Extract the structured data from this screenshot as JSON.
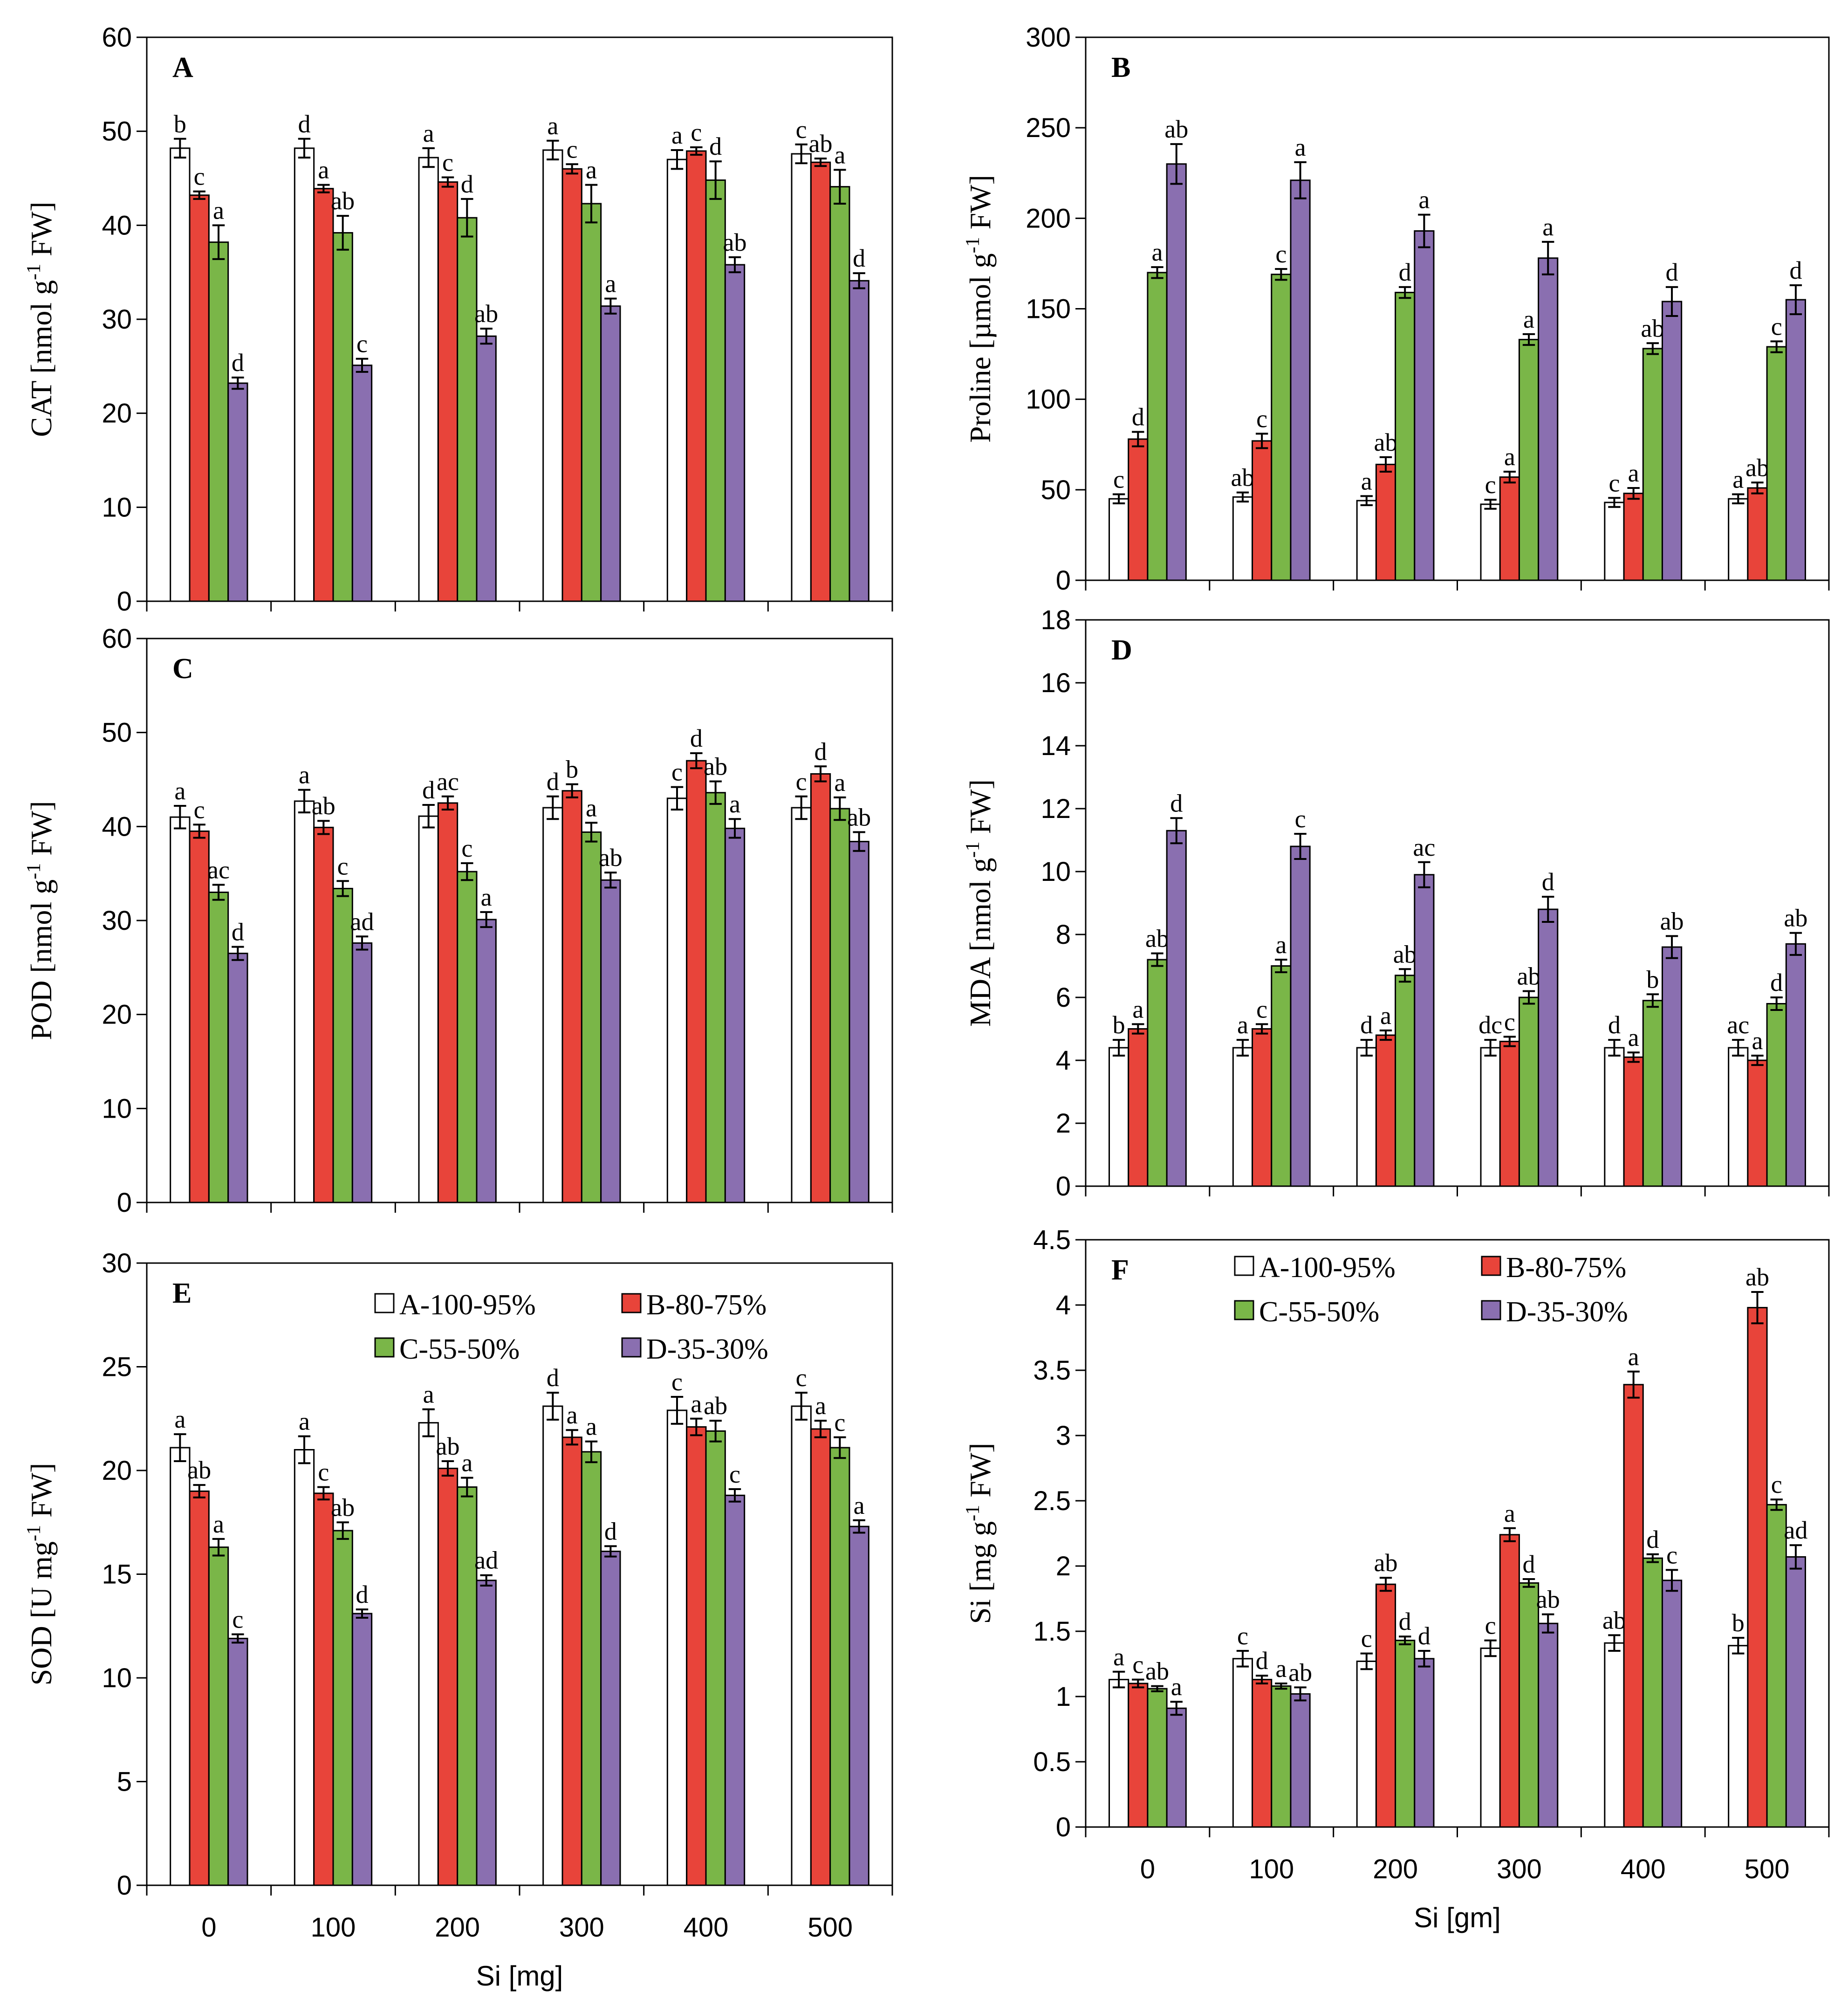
{
  "colors": {
    "A-100-95%": "#ffffff",
    "B-80-75%": "#e8443a",
    "C-55-50%": "#7ab648",
    "D-35-30%": "#8a6fb0"
  },
  "chart_data": [
    {
      "type": "bar",
      "panel": "A",
      "ylabel_parts": [
        "CAT [nmol g",
        "-1",
        " FW]"
      ],
      "xlabel": "",
      "ylim": [
        0,
        60
      ],
      "yticks": [
        0,
        10,
        20,
        30,
        40,
        50,
        60
      ],
      "categories": [
        "0",
        "100",
        "200",
        "300",
        "400",
        "500"
      ],
      "show_xticklabels": false,
      "series": [
        {
          "name": "A-100-95%",
          "values": [
            48.2,
            48.2,
            47.2,
            48.0,
            47.0,
            47.6
          ],
          "errors": [
            1.0,
            1.0,
            1.0,
            1.0,
            1.0,
            1.0
          ],
          "letters": [
            "b",
            "d",
            "a",
            "a",
            "a",
            "c"
          ]
        },
        {
          "name": "B-80-75%",
          "values": [
            43.2,
            43.9,
            44.6,
            46.0,
            47.9,
            46.7
          ],
          "errors": [
            0.4,
            0.4,
            0.5,
            0.5,
            0.4,
            0.4
          ],
          "letters": [
            "c",
            "a",
            "c",
            "c",
            "c",
            "ab"
          ]
        },
        {
          "name": "C-55-50%",
          "values": [
            38.2,
            39.2,
            40.8,
            42.3,
            44.8,
            44.1
          ],
          "errors": [
            1.8,
            1.8,
            2.0,
            2.0,
            2.0,
            1.8
          ],
          "letters": [
            "a",
            "ab",
            "d",
            "a",
            "d",
            "a"
          ]
        },
        {
          "name": "D-35-30%",
          "values": [
            23.2,
            25.1,
            28.2,
            31.4,
            35.8,
            34.1
          ],
          "errors": [
            0.6,
            0.7,
            0.8,
            0.8,
            0.8,
            0.8
          ],
          "letters": [
            "d",
            "c",
            "ab",
            "a",
            "ab",
            "d"
          ]
        }
      ]
    },
    {
      "type": "bar",
      "panel": "B",
      "ylabel_parts": [
        "Proline [µmol g",
        "-1",
        " FW]"
      ],
      "xlabel": "",
      "ylim": [
        0,
        300
      ],
      "yticks": [
        0,
        50,
        100,
        150,
        200,
        250,
        300
      ],
      "categories": [
        "0",
        "100",
        "200",
        "300",
        "400",
        "500"
      ],
      "show_xticklabels": false,
      "series": [
        {
          "name": "A-100-95%",
          "values": [
            45,
            46,
            44,
            42,
            43,
            45
          ],
          "errors": [
            2.5,
            2.5,
            2.5,
            2.5,
            2.5,
            2.5
          ],
          "letters": [
            "c",
            "ab",
            "a",
            "c",
            "c",
            "a"
          ]
        },
        {
          "name": "B-80-75%",
          "values": [
            78,
            77,
            64,
            57,
            48,
            51
          ],
          "errors": [
            4,
            4,
            4,
            3,
            3,
            3
          ],
          "letters": [
            "d",
            "c",
            "ab",
            "a",
            "a",
            "ab"
          ]
        },
        {
          "name": "C-55-50%",
          "values": [
            170,
            169,
            159,
            133,
            128,
            129
          ],
          "errors": [
            3,
            3,
            3,
            3,
            3,
            3
          ],
          "letters": [
            "a",
            "c",
            "d",
            "a",
            "ab",
            "c"
          ]
        },
        {
          "name": "D-35-30%",
          "values": [
            230,
            221,
            193,
            178,
            154,
            155
          ],
          "errors": [
            11,
            10,
            9,
            9,
            8,
            8
          ],
          "letters": [
            "ab",
            "a",
            "a",
            "a",
            "d",
            "d"
          ]
        }
      ]
    },
    {
      "type": "bar",
      "panel": "C",
      "ylabel_parts": [
        "POD [nmol g",
        "-1",
        " FW]"
      ],
      "xlabel": "",
      "ylim": [
        0,
        60
      ],
      "yticks": [
        0,
        10,
        20,
        30,
        40,
        50,
        60
      ],
      "categories": [
        "0",
        "100",
        "200",
        "300",
        "400",
        "500"
      ],
      "show_xticklabels": false,
      "series": [
        {
          "name": "A-100-95%",
          "values": [
            41.0,
            42.7,
            41.1,
            42.0,
            43.0,
            42.0
          ],
          "errors": [
            1.2,
            1.2,
            1.2,
            1.2,
            1.2,
            1.2
          ],
          "letters": [
            "a",
            "a",
            "d",
            "d",
            "c",
            "c"
          ]
        },
        {
          "name": "B-80-75%",
          "values": [
            39.5,
            39.9,
            42.5,
            43.8,
            47.0,
            45.6
          ],
          "errors": [
            0.7,
            0.7,
            0.7,
            0.7,
            0.8,
            0.8
          ],
          "letters": [
            "c",
            "ab",
            "ac",
            "b",
            "d",
            "d"
          ]
        },
        {
          "name": "C-55-50%",
          "values": [
            33.0,
            33.4,
            35.2,
            39.4,
            43.6,
            41.9
          ],
          "errors": [
            0.8,
            0.8,
            0.9,
            1.0,
            1.2,
            1.2
          ],
          "letters": [
            "ac",
            "c",
            "c",
            "a",
            "ab",
            "a"
          ]
        },
        {
          "name": "D-35-30%",
          "values": [
            26.5,
            27.6,
            30.1,
            34.3,
            39.8,
            38.4
          ],
          "errors": [
            0.7,
            0.7,
            0.8,
            0.8,
            1.0,
            1.0
          ],
          "letters": [
            "d",
            "ad",
            "a",
            "ab",
            "a",
            "ab"
          ]
        }
      ]
    },
    {
      "type": "bar",
      "panel": "D",
      "ylabel_parts": [
        "MDA [nmol g",
        "-1",
        " FW]"
      ],
      "xlabel": "",
      "ylim": [
        0,
        18
      ],
      "yticks": [
        0,
        2,
        4,
        6,
        8,
        10,
        12,
        14,
        16,
        18
      ],
      "categories": [
        "0",
        "100",
        "200",
        "300",
        "400",
        "500"
      ],
      "show_xticklabels": false,
      "series": [
        {
          "name": "A-100-95%",
          "values": [
            4.4,
            4.4,
            4.4,
            4.4,
            4.4,
            4.4
          ],
          "errors": [
            0.25,
            0.25,
            0.25,
            0.25,
            0.25,
            0.25
          ],
          "letters": [
            "b",
            "a",
            "d",
            "dc",
            "d",
            "ac"
          ]
        },
        {
          "name": "B-80-75%",
          "values": [
            5.0,
            5.0,
            4.8,
            4.6,
            4.1,
            4.0
          ],
          "errors": [
            0.15,
            0.15,
            0.15,
            0.15,
            0.15,
            0.15
          ],
          "letters": [
            "a",
            "c",
            "a",
            "c",
            "a",
            "a"
          ]
        },
        {
          "name": "C-55-50%",
          "values": [
            7.2,
            7.0,
            6.7,
            6.0,
            5.9,
            5.8
          ],
          "errors": [
            0.2,
            0.2,
            0.2,
            0.2,
            0.2,
            0.2
          ],
          "letters": [
            "ab",
            "a",
            "ab",
            "ab",
            "b",
            "d"
          ]
        },
        {
          "name": "D-35-30%",
          "values": [
            11.3,
            10.8,
            9.9,
            8.8,
            7.6,
            7.7
          ],
          "errors": [
            0.4,
            0.4,
            0.4,
            0.4,
            0.35,
            0.35
          ],
          "letters": [
            "d",
            "c",
            "ac",
            "d",
            "ab",
            "ab"
          ]
        }
      ]
    },
    {
      "type": "bar",
      "panel": "E",
      "ylabel_parts": [
        "SOD [U mg",
        "-1",
        " FW]"
      ],
      "xlabel": "Si [mg]",
      "ylim": [
        0,
        30
      ],
      "yticks": [
        0,
        5,
        10,
        15,
        20,
        25,
        30
      ],
      "categories": [
        "0",
        "100",
        "200",
        "300",
        "400",
        "500"
      ],
      "show_xticklabels": true,
      "legend": {
        "labels": [
          "A-100-95%",
          "B-80-75%",
          "C-55-50%",
          "D-35-30%"
        ],
        "position": "top-right"
      },
      "series": [
        {
          "name": "A-100-95%",
          "values": [
            21.1,
            21.0,
            22.3,
            23.1,
            22.9,
            23.1
          ],
          "errors": [
            0.65,
            0.65,
            0.65,
            0.65,
            0.65,
            0.65
          ],
          "letters": [
            "a",
            "a",
            "a",
            "d",
            "c",
            "c"
          ]
        },
        {
          "name": "B-80-75%",
          "values": [
            19.0,
            18.9,
            20.1,
            21.6,
            22.1,
            22.0
          ],
          "errors": [
            0.3,
            0.3,
            0.35,
            0.35,
            0.4,
            0.4
          ],
          "letters": [
            "ab",
            "c",
            "ab",
            "a",
            "a",
            "a"
          ]
        },
        {
          "name": "C-55-50%",
          "values": [
            16.3,
            17.1,
            19.2,
            20.9,
            21.9,
            21.1
          ],
          "errors": [
            0.4,
            0.4,
            0.45,
            0.5,
            0.5,
            0.5
          ],
          "letters": [
            "a",
            "ab",
            "a",
            "a",
            "ab",
            "c"
          ]
        },
        {
          "name": "D-35-30%",
          "values": [
            11.9,
            13.1,
            14.7,
            16.1,
            18.8,
            17.3
          ],
          "errors": [
            0.2,
            0.2,
            0.25,
            0.25,
            0.3,
            0.3
          ],
          "letters": [
            "c",
            "d",
            "ad",
            "d",
            "c",
            "a"
          ]
        }
      ]
    },
    {
      "type": "bar",
      "panel": "F",
      "ylabel_parts": [
        "Si  [mg g",
        "-1",
        " FW]"
      ],
      "xlabel": "Si [gm]",
      "ylim": [
        0,
        4.5
      ],
      "yticks": [
        0,
        0.5,
        1,
        1.5,
        2,
        2.5,
        3,
        3.5,
        4,
        4.5
      ],
      "categories": [
        "0",
        "100",
        "200",
        "300",
        "400",
        "500"
      ],
      "show_xticklabels": true,
      "legend": {
        "labels": [
          "A-100-95%",
          "B-80-75%",
          "C-55-50%",
          "D-35-30%"
        ],
        "position": "top"
      },
      "series": [
        {
          "name": "A-100-95%",
          "values": [
            1.13,
            1.29,
            1.27,
            1.37,
            1.41,
            1.39
          ],
          "errors": [
            0.06,
            0.06,
            0.06,
            0.06,
            0.06,
            0.06
          ],
          "letters": [
            "a",
            "c",
            "c",
            "c",
            "ab",
            "b"
          ]
        },
        {
          "name": "B-80-75%",
          "values": [
            1.1,
            1.13,
            1.86,
            2.24,
            3.39,
            3.98
          ],
          "errors": [
            0.03,
            0.03,
            0.05,
            0.05,
            0.1,
            0.12
          ],
          "letters": [
            "c",
            "d",
            "ab",
            "a",
            "a",
            "ab"
          ]
        },
        {
          "name": "C-55-50%",
          "values": [
            1.06,
            1.08,
            1.43,
            1.87,
            2.06,
            2.47
          ],
          "errors": [
            0.02,
            0.02,
            0.03,
            0.03,
            0.03,
            0.04
          ],
          "letters": [
            "ab",
            "a",
            "d",
            "d",
            "d",
            "c"
          ]
        },
        {
          "name": "D-35-30%",
          "values": [
            0.91,
            1.02,
            1.29,
            1.56,
            1.89,
            2.07
          ],
          "errors": [
            0.05,
            0.05,
            0.06,
            0.07,
            0.08,
            0.09
          ],
          "letters": [
            "a",
            "ab",
            "d",
            "ab",
            "c",
            "ad"
          ]
        }
      ]
    }
  ]
}
